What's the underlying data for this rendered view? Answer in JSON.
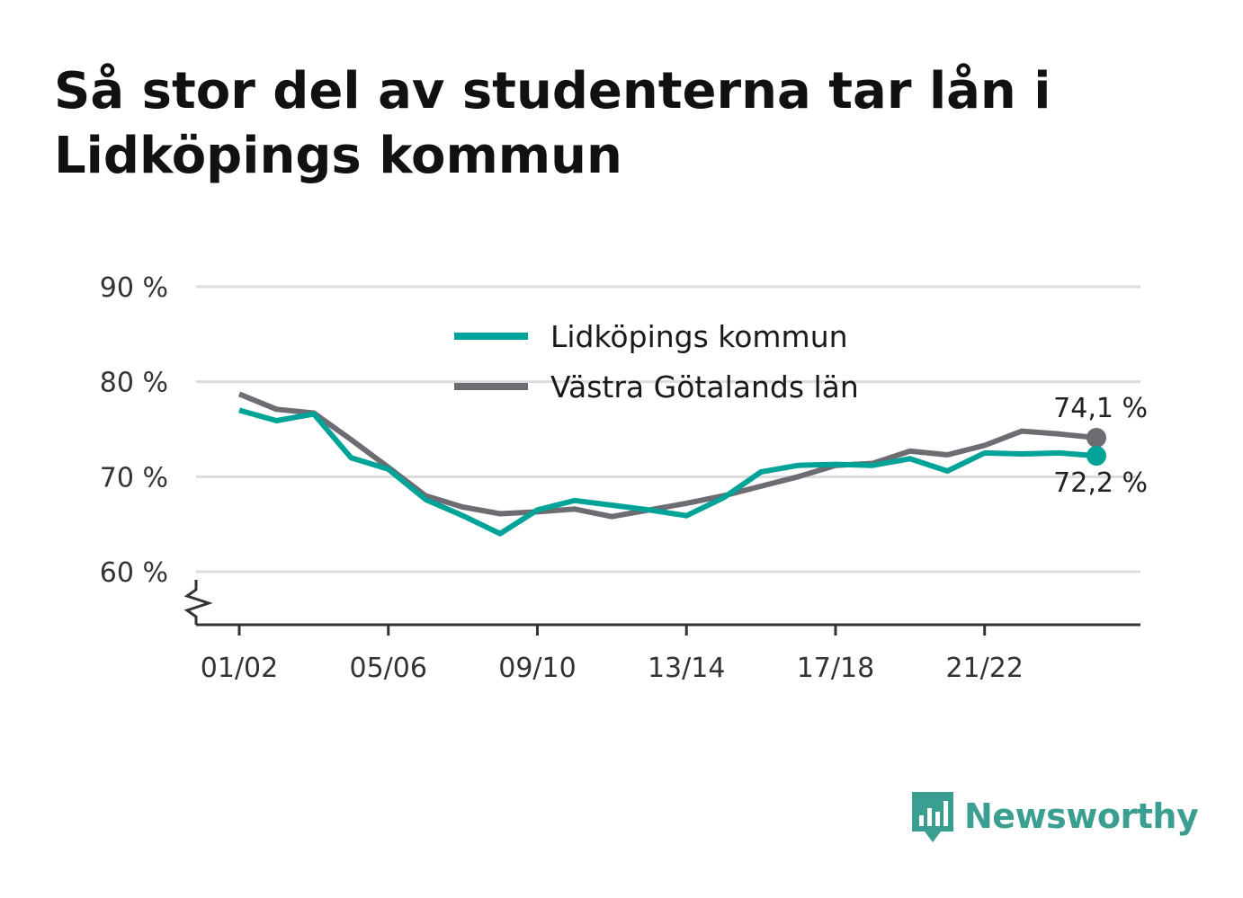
{
  "title": "Så stor del av studenterna tar lån i Lidköpings kommun",
  "colors": {
    "lidkoping": "#00a398",
    "vastra": "#6d6c72",
    "grid": "#dcdcdc",
    "axis": "#333333",
    "brand": "#3a9e91"
  },
  "logo": {
    "text": "Newsworthy",
    "icon": "newsworthy-logo-icon"
  },
  "chart_data": {
    "type": "line",
    "title": "Så stor del av studenterna tar lån i Lidköpings kommun",
    "xlabel": "",
    "ylabel": "",
    "ylim": [
      55,
      90
    ],
    "y_ticks": [
      60,
      70,
      80,
      90
    ],
    "y_tick_labels": [
      "60 %",
      "70 %",
      "80 %",
      "90 %"
    ],
    "x_tick_labels": [
      "01/02",
      "05/06",
      "09/10",
      "13/14",
      "17/18",
      "21/22"
    ],
    "x_tick_positions": [
      "01/02",
      "05/06",
      "09/10",
      "13/14",
      "17/18",
      "21/22"
    ],
    "x": [
      "01/02",
      "02/03",
      "03/04",
      "04/05",
      "05/06",
      "06/07",
      "07/08",
      "08/09",
      "09/10",
      "10/11",
      "11/12",
      "12/13",
      "13/14",
      "14/15",
      "15/16",
      "16/17",
      "17/18",
      "18/19",
      "19/20",
      "20/21",
      "21/22",
      "22/23",
      "23/24",
      "24/25"
    ],
    "grid": true,
    "legend_placement": "top-center",
    "series": [
      {
        "name": "Lidköpings kommun",
        "color": "#00a398",
        "values": [
          77.0,
          75.9,
          76.6,
          72.0,
          70.8,
          67.6,
          65.9,
          64.0,
          66.5,
          67.5,
          67.0,
          66.5,
          65.9,
          67.8,
          70.5,
          71.2,
          71.3,
          71.2,
          71.9,
          70.6,
          72.5,
          72.4,
          72.5,
          72.2
        ],
        "end_label": "72,2 %"
      },
      {
        "name": "Västra Götalands län",
        "color": "#6d6c72",
        "values": [
          78.7,
          77.1,
          76.7,
          73.9,
          71.0,
          68.0,
          66.8,
          66.1,
          66.3,
          66.6,
          65.8,
          66.5,
          67.2,
          68.0,
          69.0,
          70.0,
          71.2,
          71.4,
          72.7,
          72.3,
          73.3,
          74.8,
          74.5,
          74.1
        ],
        "end_label": "74,1 %"
      }
    ]
  }
}
